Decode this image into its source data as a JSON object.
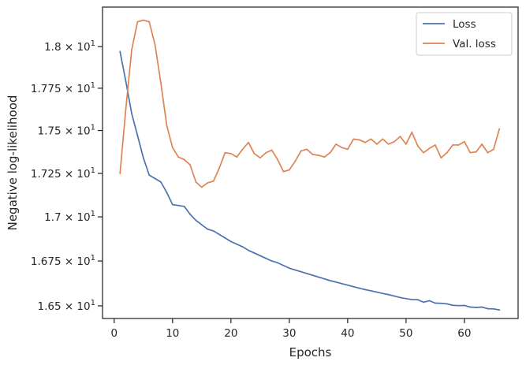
{
  "chart_data": {
    "type": "line",
    "title": "",
    "xlabel": "Epochs",
    "ylabel": "Negative log-likelihood",
    "xlim": [
      -2,
      69.2
    ],
    "ylim": [
      16.43,
      18.24
    ],
    "yscale": "log",
    "grid": false,
    "legend_position": "top-right",
    "x_ticks": [
      0,
      10,
      20,
      30,
      40,
      50,
      60
    ],
    "x_tick_labels": [
      "0",
      "10",
      "20",
      "30",
      "40",
      "50",
      "60"
    ],
    "y_ticks": [
      {
        "value": 16.5,
        "mantissa": "1.65",
        "times": "×",
        "base": "10",
        "exp": "1"
      },
      {
        "value": 16.75,
        "mantissa": "1.675",
        "times": "×",
        "base": "10",
        "exp": "1"
      },
      {
        "value": 17.0,
        "mantissa": "1.7",
        "times": "×",
        "base": "10",
        "exp": "1"
      },
      {
        "value": 17.25,
        "mantissa": "1.725",
        "times": "×",
        "base": "10",
        "exp": "1"
      },
      {
        "value": 17.5,
        "mantissa": "1.75",
        "times": "×",
        "base": "10",
        "exp": "1"
      },
      {
        "value": 17.75,
        "mantissa": "1.775",
        "times": "×",
        "base": "10",
        "exp": "1"
      },
      {
        "value": 18.0,
        "mantissa": "1.8",
        "times": "×",
        "base": "10",
        "exp": "1"
      }
    ],
    "series": [
      {
        "name": "Loss",
        "color": "#4c72b0",
        "x": [
          1,
          2,
          3,
          4,
          5,
          6,
          7,
          8,
          9,
          10,
          11,
          12,
          13,
          14,
          15,
          16,
          17,
          18,
          19,
          20,
          21,
          22,
          23,
          24,
          25,
          26,
          27,
          28,
          29,
          30,
          31,
          32,
          33,
          34,
          35,
          36,
          37,
          38,
          39,
          40,
          41,
          42,
          43,
          44,
          45,
          46,
          47,
          48,
          49,
          50,
          51,
          52,
          53,
          54,
          55,
          56,
          57,
          58,
          59,
          60,
          61,
          62,
          63,
          64,
          65,
          66
        ],
        "y": [
          17.97,
          17.79,
          17.6,
          17.47,
          17.34,
          17.24,
          17.22,
          17.2,
          17.14,
          17.07,
          17.065,
          17.06,
          17.015,
          16.98,
          16.955,
          16.93,
          16.92,
          16.9,
          16.88,
          16.86,
          16.845,
          16.83,
          16.81,
          16.795,
          16.78,
          16.765,
          16.75,
          16.74,
          16.725,
          16.71,
          16.7,
          16.69,
          16.68,
          16.67,
          16.66,
          16.65,
          16.64,
          16.632,
          16.623,
          16.615,
          16.606,
          16.598,
          16.59,
          16.583,
          16.576,
          16.569,
          16.562,
          16.554,
          16.546,
          16.54,
          16.535,
          16.534,
          16.52,
          16.528,
          16.515,
          16.514,
          16.511,
          16.503,
          16.501,
          16.502,
          16.493,
          16.491,
          16.493,
          16.484,
          16.483,
          16.477
        ]
      },
      {
        "name": "Val. loss",
        "color": "#dd8452",
        "x": [
          1,
          2,
          3,
          4,
          5,
          6,
          7,
          8,
          9,
          10,
          11,
          12,
          13,
          14,
          15,
          16,
          17,
          18,
          19,
          20,
          21,
          22,
          23,
          24,
          25,
          26,
          27,
          28,
          29,
          30,
          31,
          32,
          33,
          34,
          35,
          36,
          37,
          38,
          39,
          40,
          41,
          42,
          43,
          44,
          45,
          46,
          47,
          48,
          49,
          50,
          51,
          52,
          53,
          54,
          55,
          56,
          57,
          58,
          59,
          60,
          61,
          62,
          63,
          64,
          65,
          66
        ],
        "y": [
          17.25,
          17.63,
          17.98,
          18.15,
          18.16,
          18.15,
          18.01,
          17.78,
          17.53,
          17.4,
          17.345,
          17.33,
          17.3,
          17.2,
          17.17,
          17.195,
          17.205,
          17.28,
          17.37,
          17.365,
          17.345,
          17.39,
          17.43,
          17.365,
          17.34,
          17.37,
          17.385,
          17.33,
          17.26,
          17.27,
          17.32,
          17.38,
          17.39,
          17.36,
          17.355,
          17.345,
          17.37,
          17.42,
          17.4,
          17.39,
          17.45,
          17.445,
          17.43,
          17.45,
          17.42,
          17.45,
          17.42,
          17.435,
          17.465,
          17.42,
          17.49,
          17.41,
          17.37,
          17.395,
          17.415,
          17.34,
          17.37,
          17.415,
          17.415,
          17.435,
          17.37,
          17.375,
          17.42,
          17.37,
          17.39,
          17.51
        ]
      }
    ]
  }
}
